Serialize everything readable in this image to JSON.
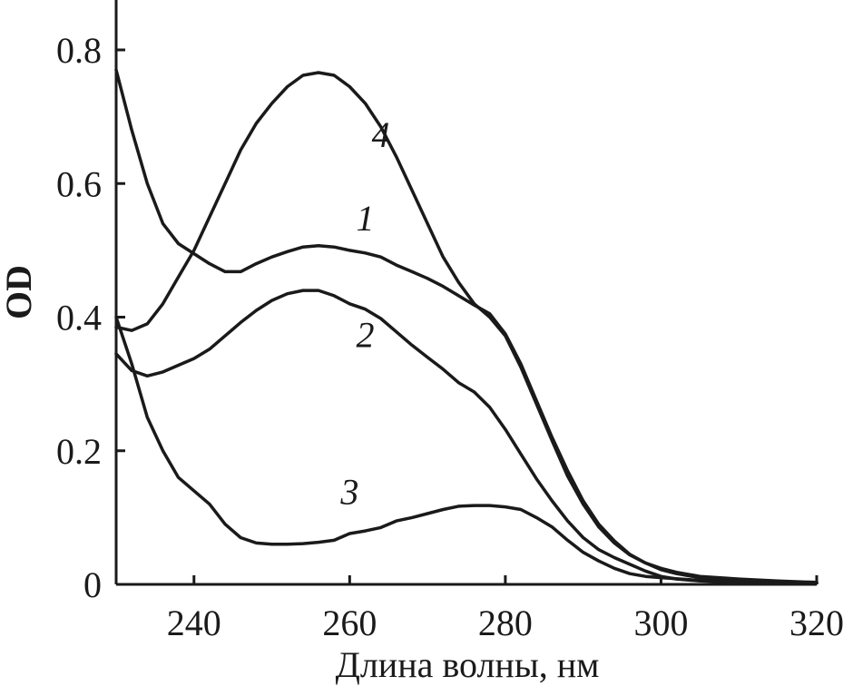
{
  "chart_data": {
    "type": "line",
    "title": "",
    "xlabel": "Длина волны, нм",
    "ylabel": "OD",
    "xlim": [
      230,
      320
    ],
    "ylim": [
      0,
      0.8
    ],
    "x_ticks": [
      240,
      260,
      280,
      300,
      320
    ],
    "x_tick_labels": [
      "240",
      "260",
      "280",
      "300",
      "320"
    ],
    "y_ticks": [
      0,
      0.2,
      0.4,
      0.6,
      0.8
    ],
    "y_tick_labels": [
      "0",
      "0.2",
      "0.4",
      "0.6",
      "0.8"
    ],
    "grid": false,
    "legend": "none",
    "series": [
      {
        "name": "1",
        "points": [
          [
            230,
            0.77
          ],
          [
            232,
            0.68
          ],
          [
            234,
            0.6
          ],
          [
            236,
            0.54
          ],
          [
            238,
            0.51
          ],
          [
            240,
            0.495
          ],
          [
            242,
            0.48
          ],
          [
            244,
            0.468
          ],
          [
            246,
            0.468
          ],
          [
            248,
            0.48
          ],
          [
            250,
            0.49
          ],
          [
            252,
            0.498
          ],
          [
            254,
            0.505
          ],
          [
            256,
            0.507
          ],
          [
            258,
            0.505
          ],
          [
            260,
            0.5
          ],
          [
            262,
            0.496
          ],
          [
            264,
            0.49
          ],
          [
            266,
            0.478
          ],
          [
            268,
            0.468
          ],
          [
            270,
            0.458
          ],
          [
            272,
            0.446
          ],
          [
            274,
            0.432
          ],
          [
            276,
            0.418
          ],
          [
            278,
            0.405
          ],
          [
            280,
            0.375
          ],
          [
            282,
            0.33
          ],
          [
            284,
            0.275
          ],
          [
            286,
            0.22
          ],
          [
            288,
            0.17
          ],
          [
            290,
            0.125
          ],
          [
            292,
            0.09
          ],
          [
            294,
            0.065
          ],
          [
            296,
            0.045
          ],
          [
            298,
            0.032
          ],
          [
            300,
            0.022
          ],
          [
            302,
            0.016
          ],
          [
            305,
            0.01
          ],
          [
            310,
            0.006
          ],
          [
            315,
            0.004
          ],
          [
            320,
            0.002
          ]
        ],
        "label": "1",
        "label_pos": [
          262,
          0.53
        ]
      },
      {
        "name": "2",
        "points": [
          [
            230,
            0.345
          ],
          [
            232,
            0.32
          ],
          [
            234,
            0.312
          ],
          [
            236,
            0.318
          ],
          [
            238,
            0.328
          ],
          [
            240,
            0.338
          ],
          [
            242,
            0.352
          ],
          [
            244,
            0.372
          ],
          [
            246,
            0.392
          ],
          [
            248,
            0.41
          ],
          [
            250,
            0.425
          ],
          [
            252,
            0.435
          ],
          [
            254,
            0.44
          ],
          [
            256,
            0.44
          ],
          [
            258,
            0.432
          ],
          [
            260,
            0.42
          ],
          [
            262,
            0.412
          ],
          [
            264,
            0.398
          ],
          [
            266,
            0.378
          ],
          [
            268,
            0.358
          ],
          [
            270,
            0.34
          ],
          [
            272,
            0.322
          ],
          [
            274,
            0.302
          ],
          [
            276,
            0.288
          ],
          [
            278,
            0.265
          ],
          [
            280,
            0.232
          ],
          [
            282,
            0.195
          ],
          [
            284,
            0.158
          ],
          [
            286,
            0.125
          ],
          [
            288,
            0.095
          ],
          [
            290,
            0.07
          ],
          [
            292,
            0.052
          ],
          [
            294,
            0.04
          ],
          [
            296,
            0.03
          ],
          [
            298,
            0.02
          ],
          [
            300,
            0.012
          ],
          [
            302,
            0.008
          ],
          [
            305,
            0.005
          ],
          [
            310,
            0.003
          ],
          [
            315,
            0.002
          ],
          [
            320,
            0.002
          ]
        ],
        "label": "2",
        "label_pos": [
          262,
          0.355
        ]
      },
      {
        "name": "3",
        "points": [
          [
            230,
            0.4
          ],
          [
            232,
            0.33
          ],
          [
            234,
            0.25
          ],
          [
            236,
            0.2
          ],
          [
            238,
            0.16
          ],
          [
            240,
            0.14
          ],
          [
            242,
            0.12
          ],
          [
            244,
            0.09
          ],
          [
            246,
            0.07
          ],
          [
            248,
            0.062
          ],
          [
            250,
            0.06
          ],
          [
            252,
            0.06
          ],
          [
            254,
            0.061
          ],
          [
            256,
            0.063
          ],
          [
            258,
            0.066
          ],
          [
            260,
            0.076
          ],
          [
            262,
            0.08
          ],
          [
            264,
            0.085
          ],
          [
            266,
            0.095
          ],
          [
            268,
            0.1
          ],
          [
            270,
            0.106
          ],
          [
            272,
            0.112
          ],
          [
            274,
            0.117
          ],
          [
            276,
            0.118
          ],
          [
            278,
            0.118
          ],
          [
            280,
            0.116
          ],
          [
            282,
            0.112
          ],
          [
            284,
            0.1
          ],
          [
            286,
            0.086
          ],
          [
            288,
            0.066
          ],
          [
            290,
            0.048
          ],
          [
            292,
            0.035
          ],
          [
            294,
            0.024
          ],
          [
            296,
            0.016
          ],
          [
            298,
            0.012
          ],
          [
            300,
            0.01
          ],
          [
            305,
            0.006
          ],
          [
            310,
            0.004
          ],
          [
            315,
            0.003
          ],
          [
            320,
            0.002
          ]
        ],
        "label": "3",
        "label_pos": [
          260,
          0.12
        ]
      },
      {
        "name": "4",
        "points": [
          [
            230,
            0.385
          ],
          [
            232,
            0.38
          ],
          [
            234,
            0.39
          ],
          [
            236,
            0.42
          ],
          [
            238,
            0.46
          ],
          [
            240,
            0.5
          ],
          [
            242,
            0.55
          ],
          [
            244,
            0.6
          ],
          [
            246,
            0.65
          ],
          [
            248,
            0.69
          ],
          [
            250,
            0.72
          ],
          [
            252,
            0.745
          ],
          [
            254,
            0.762
          ],
          [
            256,
            0.766
          ],
          [
            258,
            0.762
          ],
          [
            260,
            0.745
          ],
          [
            262,
            0.72
          ],
          [
            264,
            0.685
          ],
          [
            266,
            0.64
          ],
          [
            268,
            0.59
          ],
          [
            270,
            0.54
          ],
          [
            272,
            0.49
          ],
          [
            274,
            0.452
          ],
          [
            276,
            0.42
          ],
          [
            278,
            0.4
          ],
          [
            280,
            0.372
          ],
          [
            282,
            0.325
          ],
          [
            284,
            0.27
          ],
          [
            286,
            0.215
          ],
          [
            288,
            0.162
          ],
          [
            290,
            0.12
          ],
          [
            292,
            0.086
          ],
          [
            294,
            0.062
          ],
          [
            296,
            0.044
          ],
          [
            298,
            0.032
          ],
          [
            300,
            0.024
          ],
          [
            302,
            0.018
          ],
          [
            305,
            0.012
          ],
          [
            310,
            0.008
          ],
          [
            315,
            0.005
          ],
          [
            320,
            0.003
          ]
        ],
        "label": "4",
        "label_pos": [
          264,
          0.655
        ]
      }
    ]
  }
}
